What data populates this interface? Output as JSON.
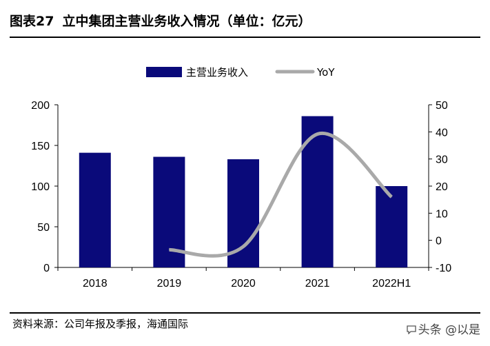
{
  "header": {
    "figure_label": "图表27",
    "title": "立中集团主营业务收入情况（单位：亿元）"
  },
  "footer": {
    "source": "资料来源：公司年报及季报，海通国际",
    "watermark": "头条 @以是",
    "watermark_icon": "chat-bubble-icon"
  },
  "colors": {
    "bar": "#0a0a7a",
    "line": "#a9a9a9"
  },
  "chart_data": {
    "type": "bar",
    "categories": [
      "2018",
      "2019",
      "2020",
      "2021",
      "2022H1"
    ],
    "series": [
      {
        "name": "主营业务收入",
        "type": "bar",
        "axis": "left",
        "values": [
          141,
          136,
          133,
          186,
          100
        ]
      },
      {
        "name": "YoY",
        "type": "line",
        "axis": "right",
        "values": [
          null,
          -3.5,
          -2.3,
          39.2,
          16
        ]
      }
    ],
    "left_axis": {
      "range": [
        0,
        200
      ],
      "ticks": [
        "0",
        "50",
        "100",
        "150",
        "200"
      ]
    },
    "right_axis": {
      "range": [
        -10,
        50
      ],
      "ticks": [
        "-10",
        "0",
        "10",
        "20",
        "30",
        "40",
        "50"
      ]
    },
    "legend": [
      "主营业务收入",
      "YoY"
    ],
    "legend_position": "top-center",
    "grid": false
  }
}
